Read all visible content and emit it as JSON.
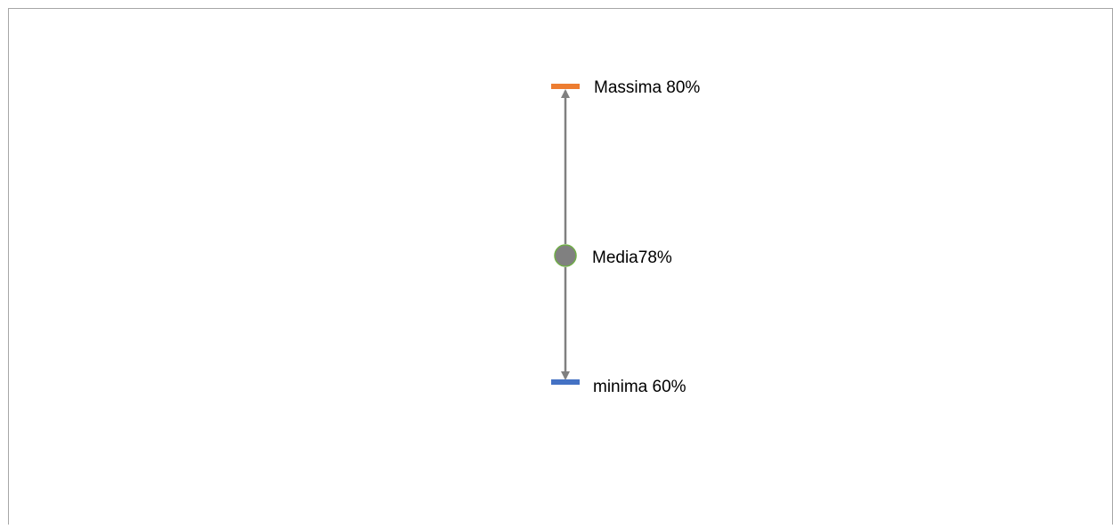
{
  "chart_data": {
    "type": "range-marker",
    "points": [
      {
        "key": "max",
        "label": "Massima 80%",
        "value": 80,
        "marker": "dash",
        "color": "#ED7D31"
      },
      {
        "key": "mean",
        "label": "Media78%",
        "value": 78,
        "marker": "circle",
        "color": "#808080",
        "edge_color": "#70AD47"
      },
      {
        "key": "min",
        "label": "minima 60%",
        "value": 60,
        "marker": "dash",
        "color": "#4472C4"
      }
    ],
    "line_color": "#808080",
    "arrows": "both-ends",
    "frame_color": "#A6A6A6"
  }
}
